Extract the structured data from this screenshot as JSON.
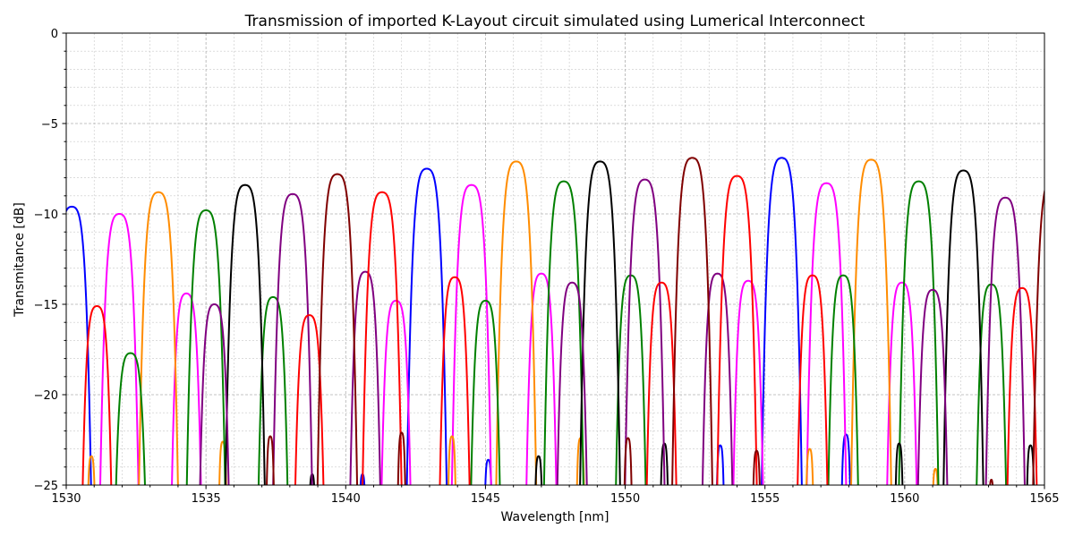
{
  "chart_data": {
    "type": "line",
    "title": "Transmission of imported K-Layout circuit simulated using Lumerical Interconnect",
    "xlabel": "Wavelength [nm]",
    "ylabel": "Transmitance [dB]",
    "xlim": [
      1530,
      1565
    ],
    "ylim": [
      -25,
      0
    ],
    "x_ticks": [
      1530,
      1535,
      1540,
      1545,
      1550,
      1555,
      1560,
      1565
    ],
    "y_ticks": [
      -25,
      -20,
      -15,
      -10,
      -5,
      0
    ],
    "x_tick_labels": [
      "1530",
      "1535",
      "1540",
      "1545",
      "1550",
      "1555",
      "1560",
      "1565"
    ],
    "y_tick_labels": [
      "−25",
      "−20",
      "−15",
      "−10",
      "−5",
      "0"
    ],
    "grid": true,
    "grid_minor": true,
    "series": [
      {
        "color": "#0000ff",
        "peaks": [
          {
            "center": 1530.2,
            "peak": -9.6,
            "width": 1.2
          },
          {
            "center": 1540.6,
            "peak": -24.4,
            "width": 0.3
          },
          {
            "center": 1542.9,
            "peak": -7.5,
            "width": 1.2
          },
          {
            "center": 1545.1,
            "peak": -23.6,
            "width": 0.35
          },
          {
            "center": 1553.4,
            "peak": -22.8,
            "width": 0.35
          },
          {
            "center": 1555.6,
            "peak": -6.9,
            "width": 1.2
          },
          {
            "center": 1557.9,
            "peak": -22.2,
            "width": 0.4
          }
        ]
      },
      {
        "color": "#ff00ff",
        "peaks": [
          {
            "center": 1531.9,
            "peak": -10.0,
            "width": 1.2
          },
          {
            "center": 1534.3,
            "peak": -14.4,
            "width": 1.0
          },
          {
            "center": 1541.8,
            "peak": -14.8,
            "width": 1.0
          },
          {
            "center": 1544.5,
            "peak": -8.4,
            "width": 1.2
          },
          {
            "center": 1547.0,
            "peak": -13.3,
            "width": 1.0
          },
          {
            "center": 1554.4,
            "peak": -13.7,
            "width": 1.0
          },
          {
            "center": 1557.2,
            "peak": -8.3,
            "width": 1.2
          },
          {
            "center": 1559.9,
            "peak": -13.8,
            "width": 1.0
          }
        ]
      },
      {
        "color": "#ff8c00",
        "peaks": [
          {
            "center": 1530.9,
            "peak": -23.4,
            "width": 0.35
          },
          {
            "center": 1533.3,
            "peak": -8.8,
            "width": 1.2
          },
          {
            "center": 1535.6,
            "peak": -22.6,
            "width": 0.35
          },
          {
            "center": 1543.8,
            "peak": -22.3,
            "width": 0.35
          },
          {
            "center": 1546.1,
            "peak": -7.1,
            "width": 1.2
          },
          {
            "center": 1548.4,
            "peak": -22.4,
            "width": 0.35
          },
          {
            "center": 1556.6,
            "peak": -23.0,
            "width": 0.35
          },
          {
            "center": 1558.8,
            "peak": -7.0,
            "width": 1.2
          },
          {
            "center": 1561.1,
            "peak": -24.1,
            "width": 0.3
          }
        ]
      },
      {
        "color": "#008000",
        "peaks": [
          {
            "center": 1532.3,
            "peak": -17.7,
            "width": 1.1
          },
          {
            "center": 1535.0,
            "peak": -9.8,
            "width": 1.2
          },
          {
            "center": 1537.4,
            "peak": -14.6,
            "width": 1.0
          },
          {
            "center": 1545.0,
            "peak": -14.8,
            "width": 1.0
          },
          {
            "center": 1547.8,
            "peak": -8.2,
            "width": 1.2
          },
          {
            "center": 1550.2,
            "peak": -13.4,
            "width": 1.0
          },
          {
            "center": 1557.8,
            "peak": -13.4,
            "width": 1.0
          },
          {
            "center": 1560.5,
            "peak": -8.2,
            "width": 1.2
          },
          {
            "center": 1563.1,
            "peak": -13.9,
            "width": 1.0
          }
        ]
      },
      {
        "color": "#000000",
        "peaks": [
          {
            "center": 1536.4,
            "peak": -8.4,
            "width": 1.2
          },
          {
            "center": 1538.8,
            "peak": -24.4,
            "width": 0.3
          },
          {
            "center": 1546.9,
            "peak": -23.4,
            "width": 0.35
          },
          {
            "center": 1549.1,
            "peak": -7.1,
            "width": 1.2
          },
          {
            "center": 1551.4,
            "peak": -22.7,
            "width": 0.35
          },
          {
            "center": 1559.8,
            "peak": -22.7,
            "width": 0.35
          },
          {
            "center": 1562.1,
            "peak": -7.6,
            "width": 1.2
          },
          {
            "center": 1564.5,
            "peak": -22.8,
            "width": 0.35
          }
        ]
      },
      {
        "color": "#800080",
        "peaks": [
          {
            "center": 1535.3,
            "peak": -15.0,
            "width": 1.0
          },
          {
            "center": 1538.1,
            "peak": -8.9,
            "width": 1.2
          },
          {
            "center": 1540.7,
            "peak": -13.2,
            "width": 1.0
          },
          {
            "center": 1548.1,
            "peak": -13.8,
            "width": 1.0
          },
          {
            "center": 1550.7,
            "peak": -8.1,
            "width": 1.2
          },
          {
            "center": 1553.3,
            "peak": -13.3,
            "width": 1.0
          },
          {
            "center": 1561.0,
            "peak": -14.2,
            "width": 1.0
          },
          {
            "center": 1563.6,
            "peak": -9.1,
            "width": 1.2
          }
        ]
      },
      {
        "color": "#ff0000",
        "peaks": [
          {
            "center": 1531.1,
            "peak": -15.1,
            "width": 1.0
          },
          {
            "center": 1538.7,
            "peak": -15.6,
            "width": 1.0
          },
          {
            "center": 1541.3,
            "peak": -8.8,
            "width": 1.2
          },
          {
            "center": 1543.9,
            "peak": -13.5,
            "width": 1.0
          },
          {
            "center": 1551.3,
            "peak": -13.8,
            "width": 1.0
          },
          {
            "center": 1554.0,
            "peak": -7.9,
            "width": 1.2
          },
          {
            "center": 1556.7,
            "peak": -13.4,
            "width": 1.0
          },
          {
            "center": 1564.2,
            "peak": -14.1,
            "width": 1.0
          }
        ]
      },
      {
        "color": "#800000",
        "peaks": [
          {
            "center": 1537.3,
            "peak": -22.3,
            "width": 0.35
          },
          {
            "center": 1539.7,
            "peak": -7.8,
            "width": 1.2
          },
          {
            "center": 1542.0,
            "peak": -22.1,
            "width": 0.35
          },
          {
            "center": 1550.1,
            "peak": -22.4,
            "width": 0.35
          },
          {
            "center": 1552.4,
            "peak": -6.9,
            "width": 1.2
          },
          {
            "center": 1554.7,
            "peak": -23.1,
            "width": 0.35
          },
          {
            "center": 1563.1,
            "peak": -24.7,
            "width": 0.25
          },
          {
            "center": 1565.3,
            "peak": -8.0,
            "width": 1.2
          }
        ]
      }
    ]
  }
}
